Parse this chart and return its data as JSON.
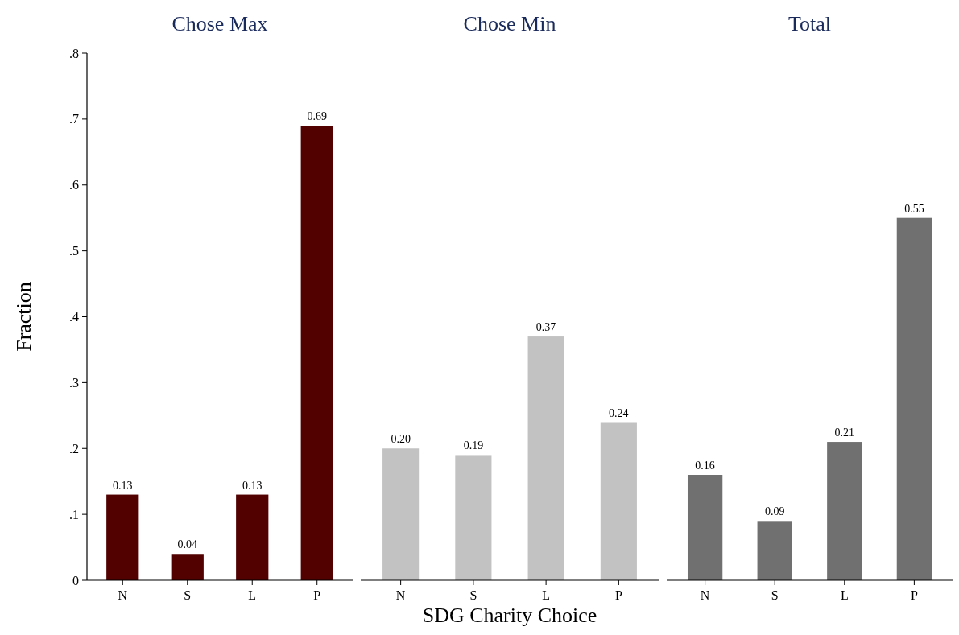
{
  "chart_data": [
    {
      "type": "bar",
      "title": "Chose Max",
      "ylabel": "Fraction",
      "categories": [
        "N",
        "S",
        "L",
        "P"
      ],
      "values": [
        0.13,
        0.04,
        0.13,
        0.69
      ],
      "value_labels": [
        "0.13",
        "0.04",
        "0.13",
        "0.69"
      ],
      "color": "#520000",
      "ylim": [
        0,
        0.8
      ],
      "yticks": [
        0,
        {
          "value": 0.1,
          "label": ".1"
        },
        {
          "value": 0.2,
          "label": ".2"
        },
        {
          "value": 0.3,
          "label": ".3"
        },
        {
          "value": 0.4,
          "label": ".4"
        },
        {
          "value": 0.5,
          "label": ".5"
        },
        {
          "value": 0.6,
          "label": ".6"
        },
        {
          "value": 0.7,
          "label": ".7"
        },
        {
          "value": 0.8,
          "label": ".8"
        }
      ]
    },
    {
      "type": "bar",
      "title": "Chose Min",
      "xlabel": "SDG Charity Choice",
      "categories": [
        "N",
        "S",
        "L",
        "P"
      ],
      "values": [
        0.2,
        0.19,
        0.37,
        0.24
      ],
      "value_labels": [
        "0.20",
        "0.19",
        "0.37",
        "0.24"
      ],
      "color": "#c2c2c2",
      "ylim": [
        0,
        0.8
      ],
      "tick_labels": "x"
    },
    {
      "type": "bar",
      "title": "Total",
      "categories": [
        "N",
        "S",
        "L",
        "P"
      ],
      "values": [
        0.16,
        0.09,
        0.21,
        0.55
      ],
      "value_labels": [
        "0.16",
        "0.09",
        "0.21",
        "0.55"
      ],
      "color": "#707070",
      "ylim": [
        0,
        0.8
      ],
      "tick_labels": "x"
    }
  ]
}
